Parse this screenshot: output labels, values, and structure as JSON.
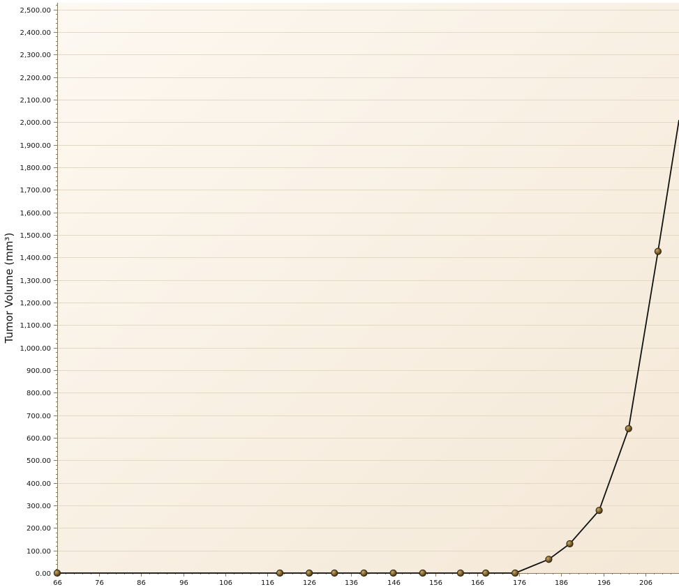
{
  "chart_data": {
    "type": "line",
    "title": "",
    "xlabel": "",
    "ylabel": "Tumor Volume (mm³)",
    "xlim": [
      66,
      214
    ],
    "ylim": [
      0,
      2530
    ],
    "x_ticks": [
      66,
      76,
      86,
      96,
      106,
      116,
      126,
      136,
      146,
      156,
      166,
      176,
      186,
      196,
      206
    ],
    "x_tick_labels": [
      "66",
      "76",
      "86",
      "96",
      "106",
      "116",
      "126",
      "136",
      "146",
      "156",
      "166",
      "176",
      "186",
      "196",
      "206"
    ],
    "y_ticks": [
      0,
      100,
      200,
      300,
      400,
      500,
      600,
      700,
      800,
      900,
      1000,
      1100,
      1200,
      1300,
      1400,
      1500,
      1600,
      1700,
      1800,
      1900,
      2000,
      2100,
      2200,
      2300,
      2400,
      2500
    ],
    "y_tick_labels": [
      "0.00",
      "100.00",
      "200.00",
      "300.00",
      "400.00",
      "500.00",
      "600.00",
      "700.00",
      "800.00",
      "900.00",
      "1,000.00",
      "1,100.00",
      "1,200.00",
      "1,300.00",
      "1,400.00",
      "1,500.00",
      "1,600.00",
      "1,700.00",
      "1,800.00",
      "1,900.00",
      "2,000.00",
      "2,100.00",
      "2,200.00",
      "2,300.00",
      "2,400.00",
      "2,500.00"
    ],
    "grid": true,
    "series": [
      {
        "points": [
          {
            "x": 66,
            "y": 0
          },
          {
            "x": 119,
            "y": 0
          },
          {
            "x": 126,
            "y": 0
          },
          {
            "x": 132,
            "y": 0
          },
          {
            "x": 139,
            "y": 0
          },
          {
            "x": 146,
            "y": 0
          },
          {
            "x": 153,
            "y": 0
          },
          {
            "x": 162,
            "y": 0
          },
          {
            "x": 168,
            "y": 0
          },
          {
            "x": 175,
            "y": 0
          },
          {
            "x": 183,
            "y": 61
          },
          {
            "x": 188,
            "y": 130
          },
          {
            "x": 195,
            "y": 278
          },
          {
            "x": 202,
            "y": 641
          },
          {
            "x": 209,
            "y": 1427
          },
          {
            "x": 214,
            "y": 2010,
            "marker": false
          }
        ]
      }
    ],
    "colors": {
      "line": "#111111",
      "marker": "#7a5f2a",
      "grid": "#e3d8c2",
      "background_start": "#fdf8f1",
      "background_end": "#f4e8d6",
      "axis": "#8a7a5a"
    }
  }
}
